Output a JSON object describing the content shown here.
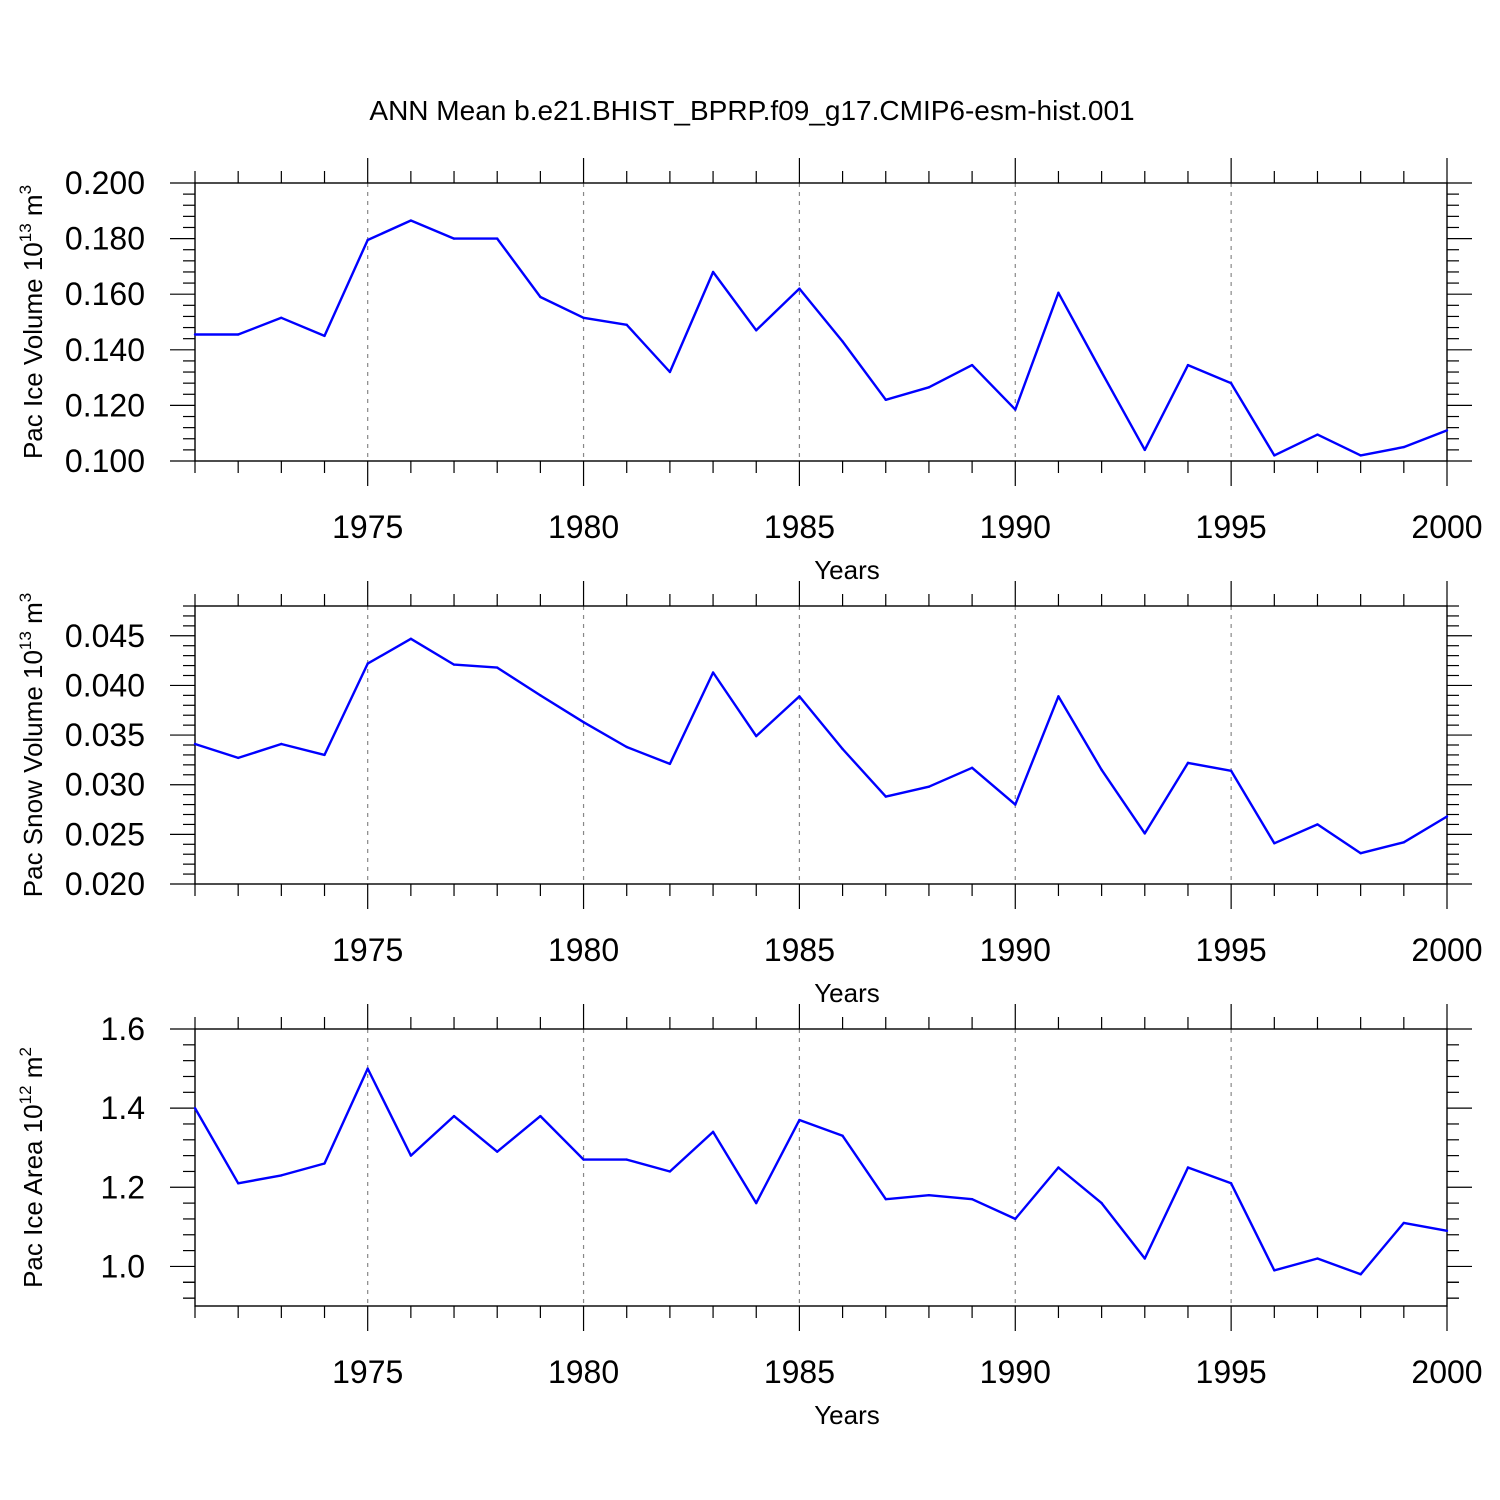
{
  "figure": {
    "title": "ANN Mean b.e21.BHIST_BPRP.f09_g17.CMIP6-esm-hist.001",
    "line_color": "#0000ff",
    "grid_color": "#888888"
  },
  "chart_data": [
    {
      "type": "line",
      "ylabel": {
        "main": "Pac Ice Volume 10",
        "sup": "13",
        "unit": " m",
        "unit_sup": "3"
      },
      "xlabel": "Years",
      "xlim": [
        1971,
        2000
      ],
      "ylim": [
        0.1,
        0.2
      ],
      "xticks": [
        1975,
        1980,
        1985,
        1990,
        1995,
        2000
      ],
      "xtick_labels": [
        "1975",
        "1980",
        "1985",
        "1990",
        "1995",
        "2000"
      ],
      "yticks": [
        0.1,
        0.12,
        0.14,
        0.16,
        0.18,
        0.2
      ],
      "ytick_labels": [
        "0.100",
        "0.120",
        "0.140",
        "0.160",
        "0.180",
        "0.200"
      ],
      "grid": "vertical-dashed-at-major-x",
      "x": [
        1971,
        1972,
        1973,
        1974,
        1975,
        1976,
        1977,
        1978,
        1979,
        1980,
        1981,
        1982,
        1983,
        1984,
        1985,
        1986,
        1987,
        1988,
        1989,
        1990,
        1991,
        1992,
        1993,
        1994,
        1995,
        1996,
        1997,
        1998,
        1999,
        2000
      ],
      "values": [
        0.1455,
        0.1455,
        0.1515,
        0.145,
        0.1795,
        0.1865,
        0.18,
        0.18,
        0.159,
        0.1515,
        0.149,
        0.132,
        0.168,
        0.147,
        0.162,
        0.143,
        0.122,
        0.1265,
        0.1345,
        0.1185,
        0.1605,
        0.132,
        0.104,
        0.1345,
        0.128,
        0.102,
        0.1095,
        0.102,
        0.105,
        0.111
      ]
    },
    {
      "type": "line",
      "ylabel": {
        "main": "Pac Snow Volume 10",
        "sup": "13",
        "unit": " m",
        "unit_sup": "3"
      },
      "xlabel": "Years",
      "xlim": [
        1971,
        2000
      ],
      "ylim": [
        0.02,
        0.048
      ],
      "xticks": [
        1975,
        1980,
        1985,
        1990,
        1995,
        2000
      ],
      "xtick_labels": [
        "1975",
        "1980",
        "1985",
        "1990",
        "1995",
        "2000"
      ],
      "yticks": [
        0.02,
        0.025,
        0.03,
        0.035,
        0.04,
        0.045
      ],
      "ytick_labels": [
        "0.020",
        "0.025",
        "0.030",
        "0.035",
        "0.040",
        "0.045"
      ],
      "grid": "vertical-dashed-at-major-x",
      "x": [
        1971,
        1972,
        1973,
        1974,
        1975,
        1976,
        1977,
        1978,
        1979,
        1980,
        1981,
        1982,
        1983,
        1984,
        1985,
        1986,
        1987,
        1988,
        1989,
        1990,
        1991,
        1992,
        1993,
        1994,
        1995,
        1996,
        1997,
        1998,
        1999,
        2000
      ],
      "values": [
        0.0341,
        0.0327,
        0.0341,
        0.033,
        0.0422,
        0.0447,
        0.0421,
        0.0418,
        0.039,
        0.0363,
        0.0338,
        0.0321,
        0.0413,
        0.0349,
        0.0389,
        0.0336,
        0.0288,
        0.0298,
        0.0317,
        0.028,
        0.0389,
        0.0315,
        0.0251,
        0.0322,
        0.0314,
        0.0241,
        0.026,
        0.0231,
        0.0242,
        0.0268
      ]
    },
    {
      "type": "line",
      "ylabel": {
        "main": "Pac Ice Area 10",
        "sup": "12",
        "unit": " m",
        "unit_sup": "2"
      },
      "xlabel": "Years",
      "xlim": [
        1971,
        2000
      ],
      "ylim": [
        0.9,
        1.6
      ],
      "xticks": [
        1975,
        1980,
        1985,
        1990,
        1995,
        2000
      ],
      "xtick_labels": [
        "1975",
        "1980",
        "1985",
        "1990",
        "1995",
        "2000"
      ],
      "yticks": [
        1.0,
        1.2,
        1.4,
        1.6
      ],
      "ytick_labels": [
        "1.0",
        "1.2",
        "1.4",
        "1.6"
      ],
      "grid": "vertical-dashed-at-major-x",
      "x": [
        1971,
        1972,
        1973,
        1974,
        1975,
        1976,
        1977,
        1978,
        1979,
        1980,
        1981,
        1982,
        1983,
        1984,
        1985,
        1986,
        1987,
        1988,
        1989,
        1990,
        1991,
        1992,
        1993,
        1994,
        1995,
        1996,
        1997,
        1998,
        1999,
        2000
      ],
      "values": [
        1.4,
        1.21,
        1.23,
        1.26,
        1.5,
        1.28,
        1.38,
        1.29,
        1.38,
        1.27,
        1.27,
        1.24,
        1.34,
        1.16,
        1.37,
        1.33,
        1.17,
        1.18,
        1.17,
        1.12,
        1.25,
        1.16,
        1.02,
        1.25,
        1.21,
        0.99,
        1.02,
        0.98,
        1.11,
        1.09
      ]
    }
  ]
}
